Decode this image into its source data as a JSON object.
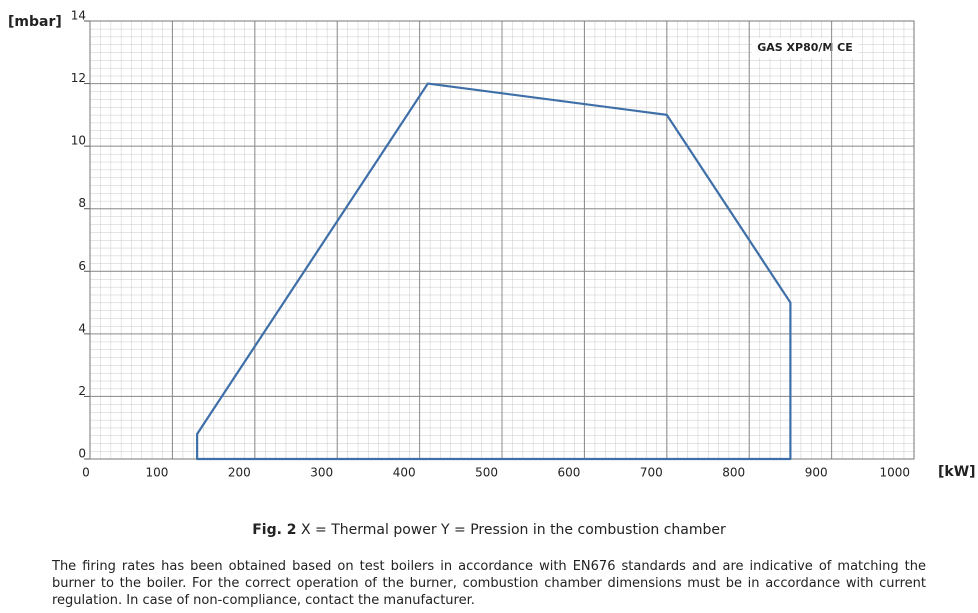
{
  "chart_data": {
    "type": "line",
    "title": "GAS XP80/M CE",
    "x_label": "[kW]",
    "y_label": "[mbar]",
    "x": [
      130,
      130,
      410,
      700,
      850,
      850
    ],
    "values": [
      0,
      0.8,
      12,
      11,
      5,
      0
    ],
    "color": "#3f6fa8",
    "closed": true,
    "xlim": [
      0,
      1000
    ],
    "xticks": [
      0,
      100,
      200,
      300,
      400,
      500,
      600,
      700,
      800,
      900,
      1000
    ],
    "ylim": [
      0,
      14
    ],
    "yticks": [
      0,
      2,
      4,
      6,
      8,
      10,
      12,
      14
    ],
    "grid": true
  },
  "caption": {
    "label": "Fig. 2",
    "text": "X = Thermal power Y = Pression in the combustion chamber"
  },
  "note": "The firing rates has been obtained based on test boilers in accordance with EN676 standards and are indicative of matching the burner to the boiler. For the correct operation of the burner, combustion chamber dimensions must be in accordance with current regulation. In case of non-compliance, contact the manufacturer."
}
